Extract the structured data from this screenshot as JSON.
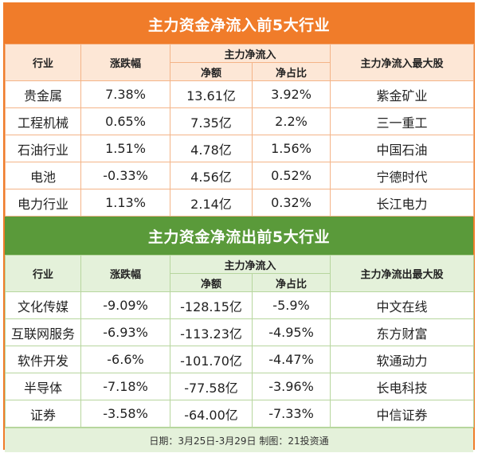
{
  "inflow": {
    "title": "主力资金净流入前5大行业",
    "headers": {
      "industry": "行业",
      "change": "涨跌幅",
      "group": "主力净流入",
      "amount": "净额",
      "ratio": "净占比",
      "top_stock": "主力净流入最大股"
    },
    "rows": [
      {
        "industry": "贵金属",
        "change": "7.38%",
        "amount": "13.61亿",
        "ratio": "3.92%",
        "stock": "紫金矿业"
      },
      {
        "industry": "工程机械",
        "change": "0.65%",
        "amount": "7.35亿",
        "ratio": "2.2%",
        "stock": "三一重工"
      },
      {
        "industry": "石油行业",
        "change": "1.51%",
        "amount": "4.78亿",
        "ratio": "1.56%",
        "stock": "中国石油"
      },
      {
        "industry": "电池",
        "change": "-0.33%",
        "amount": "4.56亿",
        "ratio": "0.52%",
        "stock": "宁德时代"
      },
      {
        "industry": "电力行业",
        "change": "1.13%",
        "amount": "2.14亿",
        "ratio": "0.32%",
        "stock": "长江电力"
      }
    ]
  },
  "outflow": {
    "title": "主力资金净流出前5大行业",
    "headers": {
      "industry": "行业",
      "change": "涨跌幅",
      "group": "主力净流入",
      "amount": "净额",
      "ratio": "净占比",
      "top_stock": "主力净流出最大股"
    },
    "rows": [
      {
        "industry": "文化传媒",
        "change": "-9.09%",
        "amount": "-128.15亿",
        "ratio": "-5.9%",
        "stock": "中文在线"
      },
      {
        "industry": "互联网服务",
        "change": "-6.93%",
        "amount": "-113.23亿",
        "ratio": "-4.95%",
        "stock": "东方财富"
      },
      {
        "industry": "软件开发",
        "change": "-6.6%",
        "amount": "-101.70亿",
        "ratio": "-4.47%",
        "stock": "软通动力"
      },
      {
        "industry": "半导体",
        "change": "-7.18%",
        "amount": "-77.58亿",
        "ratio": "-3.96%",
        "stock": "长电科技"
      },
      {
        "industry": "证券",
        "change": "-3.58%",
        "amount": "-64.00亿",
        "ratio": "-7.33%",
        "stock": "中信证券"
      }
    ]
  },
  "footer": "日期：3月25日-3月29日 制图：21投资通",
  "colors": {
    "inflow_accent": "#f07c2a",
    "outflow_accent": "#5a9a3a"
  }
}
